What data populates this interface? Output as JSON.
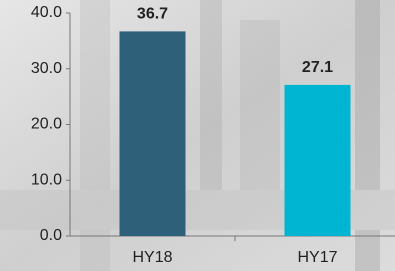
{
  "chart_data": {
    "type": "bar",
    "categories": [
      "HY18",
      "HY17"
    ],
    "values": [
      36.7,
      27.1
    ],
    "colors": [
      "#2e6079",
      "#00b5d1"
    ],
    "ylim": [
      0,
      40
    ],
    "yticks": [
      {
        "value": 0,
        "label": "0.0"
      },
      {
        "value": 10,
        "label": "10.0"
      },
      {
        "value": 20,
        "label": "20.0"
      },
      {
        "value": 30,
        "label": "30.0"
      },
      {
        "value": 40,
        "label": "40.0"
      }
    ],
    "grid": false
  }
}
